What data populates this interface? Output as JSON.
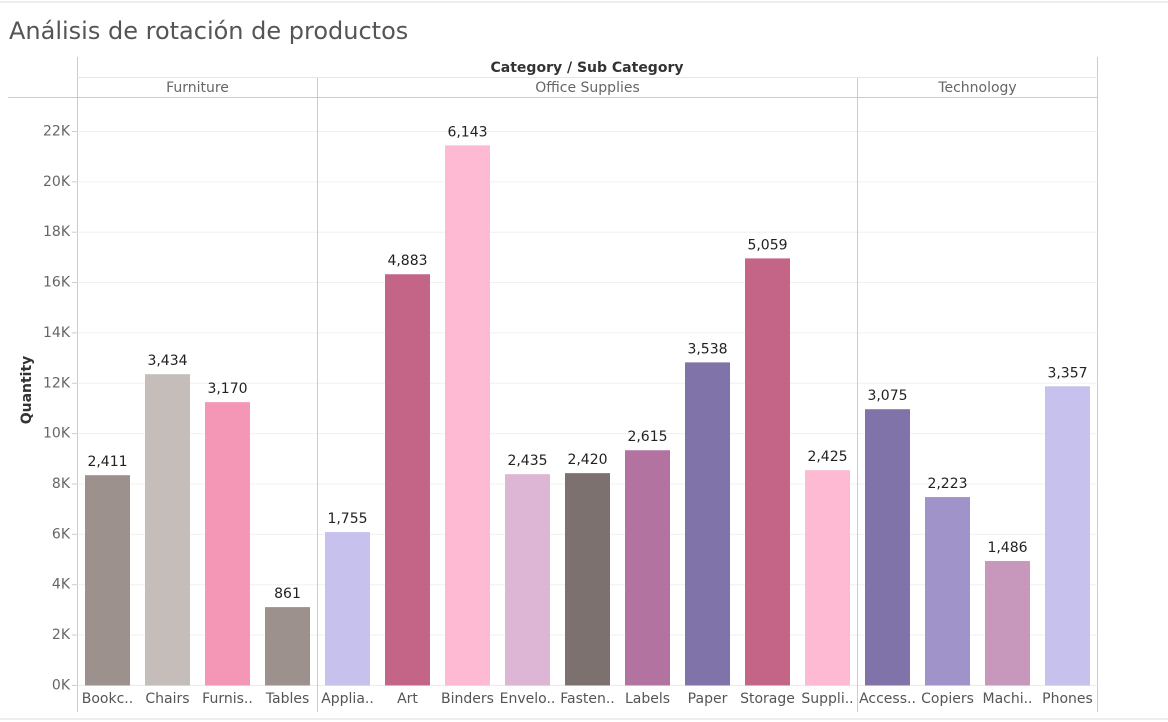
{
  "chart_data": {
    "type": "bar",
    "title": "Análisis de rotación de productos",
    "header_title": "Category / Sub Category",
    "y_label": "Quantity",
    "ylim": [
      0,
      23350
    ],
    "yticks": [
      {
        "value": 0,
        "label": "0K"
      },
      {
        "value": 2000,
        "label": "2K"
      },
      {
        "value": 4000,
        "label": "4K"
      },
      {
        "value": 6000,
        "label": "6K"
      },
      {
        "value": 8000,
        "label": "8K"
      },
      {
        "value": 10000,
        "label": "10K"
      },
      {
        "value": 12000,
        "label": "12K"
      },
      {
        "value": 14000,
        "label": "14K"
      },
      {
        "value": 16000,
        "label": "16K"
      },
      {
        "value": 18000,
        "label": "18K"
      },
      {
        "value": 20000,
        "label": "20K"
      },
      {
        "value": 22000,
        "label": "22K"
      }
    ],
    "grid": true,
    "groups": [
      {
        "name": "Furniture",
        "categories": [
          "Bookc..",
          "Chairs",
          "Furnis..",
          "Tables"
        ],
        "values": [
          8350,
          12360,
          11250,
          3110
        ],
        "data_labels": [
          {
            "value": 2411,
            "label": "2,411"
          },
          {
            "value": 3434,
            "label": "3,434"
          },
          {
            "value": 3170,
            "label": "3,170"
          },
          861
        ],
        "colors": [
          "#9d918d",
          "#c4bdb9",
          "#f497b6",
          "#9d918d"
        ]
      },
      {
        "name": "Office Supplies",
        "categories": [
          "Applia..",
          "Art",
          "Binders",
          "Envelo..",
          "Fasten..",
          "Labels",
          "Paper",
          "Storage",
          "Suppli.."
        ],
        "values": [
          6090,
          16330,
          21450,
          8390,
          8430,
          9340,
          12830,
          16960,
          8550
        ],
        "data_labels": [
          {
            "value": 1755,
            "label": "1,755"
          },
          {
            "value": 4883,
            "label": "4,883"
          },
          {
            "value": 6143,
            "label": "6,143"
          },
          {
            "value": 2435,
            "label": "2,435"
          },
          {
            "value": 2420,
            "label": "2,420"
          },
          {
            "value": 2615,
            "label": "2,615"
          },
          {
            "value": 3538,
            "label": "3,538"
          },
          {
            "value": 5059,
            "label": "5,059"
          },
          {
            "value": 2425,
            "label": "2,425"
          }
        ],
        "colors": [
          "#c7c1ee",
          "#c46587",
          "#fdbad2",
          "#ddb6d5",
          "#7d716f",
          "#b273a0",
          "#8073a9",
          "#c46587",
          "#fdbad2"
        ]
      },
      {
        "name": "Technology",
        "categories": [
          "Access..",
          "Copiers",
          "Machi..",
          "Phones"
        ],
        "values": [
          10970,
          7480,
          4940,
          11880
        ],
        "data_labels": [
          {
            "value": 3075,
            "label": "3,075"
          },
          {
            "value": 2223,
            "label": "2,223"
          },
          {
            "value": 1486,
            "label": "1,486"
          },
          {
            "value": 3357,
            "label": "3,357"
          }
        ],
        "colors": [
          "#8073a9",
          "#9f93c9",
          "#c898bc",
          "#c7c1ee"
        ]
      }
    ]
  }
}
